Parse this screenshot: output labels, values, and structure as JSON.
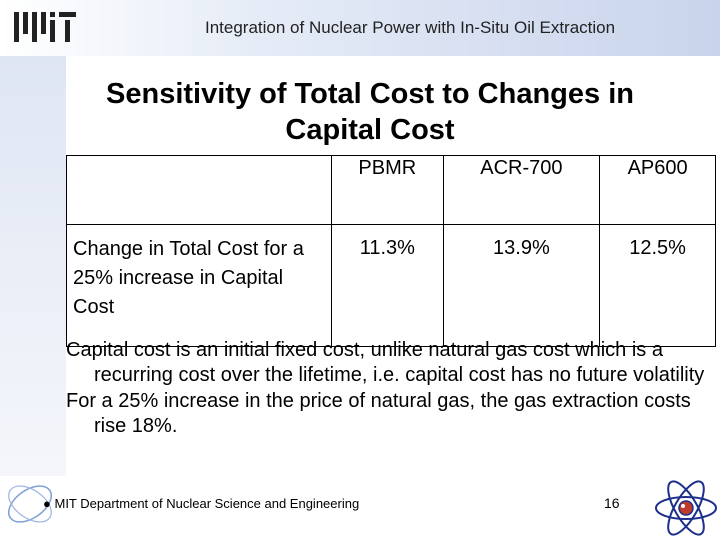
{
  "header": {
    "logo": "MIT",
    "title": "Integration of Nuclear Power with In-Situ Oil Extraction"
  },
  "slide": {
    "title_line1": "Sensitivity of Total Cost to Changes in",
    "title_line2": "Capital Cost"
  },
  "table": {
    "columns": [
      "",
      "PBMR",
      "ACR-700",
      "AP600"
    ],
    "row_label": "Change in Total Cost for a 25% increase in Capital Cost",
    "values": [
      "11.3%",
      "13.9%",
      "12.5%"
    ]
  },
  "bullets": [
    "Capital cost is an initial fixed cost, unlike natural gas cost which is a recurring cost over the lifetime, i.e. capital cost has no future volatility",
    "For a 25% increase in the price of natural gas, the gas extraction costs rise 18%."
  ],
  "footer": {
    "bullet": "●",
    "department": "MIT Department of Nuclear Science and Engineering",
    "page_number": "16"
  },
  "icons": {
    "logo": "mit-logo",
    "orbit": "orbit-swirl-icon",
    "atom": "atom-icon"
  },
  "colors": {
    "band": "#c9d4ec",
    "atom_orbit": "#1c2f8a",
    "atom_core": "#c0392b"
  }
}
